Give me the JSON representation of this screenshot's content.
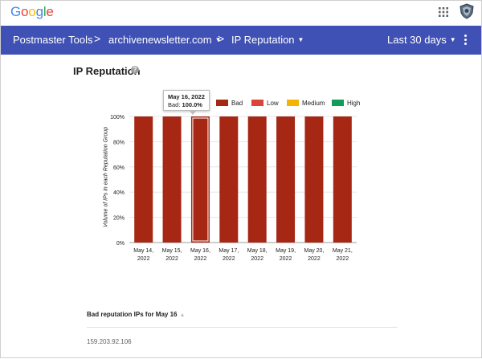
{
  "header": {
    "logo_text": "Google",
    "logo_colors": [
      "#4285F4",
      "#EA4335",
      "#FBBC05",
      "#4285F4",
      "#34A853",
      "#EA4335"
    ],
    "apps_icon": "apps-grid-icon",
    "avatar_icon": "shield-avatar-icon"
  },
  "nav": {
    "product": "Postmaster Tools",
    "domain": "archivenewsletter.com",
    "dashboard": "IP Reputation",
    "date_range": "Last 30 days",
    "separator": ">",
    "menu_icon": "more-vert-icon",
    "bar_color": "#3f51b5"
  },
  "page": {
    "title": "IP Reputation",
    "help_icon": "help-circle-icon"
  },
  "tooltip": {
    "title": "May 16, 2022",
    "label": "Bad:",
    "value": "100.0%"
  },
  "table": {
    "header": "Bad reputation IPs for May 16",
    "sort_icon": "sort-asc-icon",
    "rows": [
      [
        "159.203.92.106"
      ]
    ]
  },
  "chart_data": {
    "type": "bar",
    "stacked": true,
    "categories": [
      "May 14, 2022",
      "May 15, 2022",
      "May 16, 2022",
      "May 17, 2022",
      "May 18, 2022",
      "May 19, 2022",
      "May 20, 2022",
      "May 21, 2022"
    ],
    "category_lines": [
      [
        "May 14,",
        "2022"
      ],
      [
        "May 15,",
        "2022"
      ],
      [
        "May 16,",
        "2022"
      ],
      [
        "May 17,",
        "2022"
      ],
      [
        "May 18,",
        "2022"
      ],
      [
        "May 19,",
        "2022"
      ],
      [
        "May 20,",
        "2022"
      ],
      [
        "May 21,",
        "2022"
      ]
    ],
    "series": [
      {
        "name": "Bad",
        "color": "#a52714",
        "values": [
          100,
          100,
          100,
          100,
          100,
          100,
          100,
          100
        ]
      },
      {
        "name": "Low",
        "color": "#db4437",
        "values": [
          0,
          0,
          0,
          0,
          0,
          0,
          0,
          0
        ]
      },
      {
        "name": "Medium",
        "color": "#f4b400",
        "values": [
          0,
          0,
          0,
          0,
          0,
          0,
          0,
          0
        ]
      },
      {
        "name": "High",
        "color": "#0f9d58",
        "values": [
          0,
          0,
          0,
          0,
          0,
          0,
          0,
          0
        ]
      }
    ],
    "ylabel": "Volume of IPs in each Reputation Group",
    "ylim": [
      0,
      100
    ],
    "yticks": [
      "0%",
      "20%",
      "40%",
      "60%",
      "80%",
      "100%"
    ],
    "highlighted_category": "May 16, 2022",
    "legend_position": "top",
    "grid": true
  }
}
